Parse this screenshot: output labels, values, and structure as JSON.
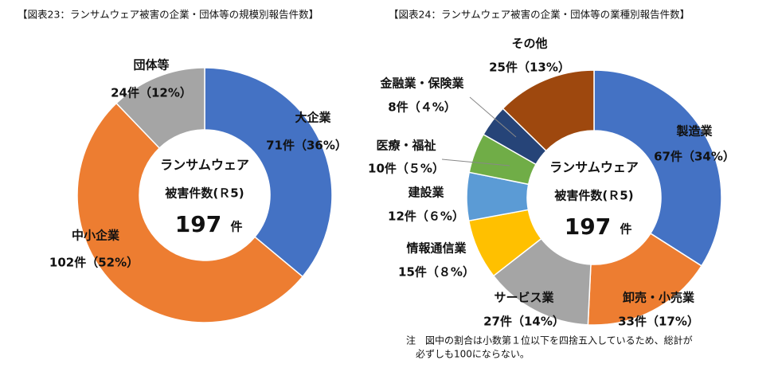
{
  "chart_data": [
    {
      "type": "donut",
      "title": "【図表23：ランサムウェア被害の企業・団体等の規模別報告件数】",
      "center_lines": [
        "ランサムウェア",
        "被害件数(Ｒ5)"
      ],
      "total": 197,
      "total_unit": "件",
      "categories": [
        "大企業",
        "中小企業",
        "団体等"
      ],
      "values": [
        71,
        102,
        24
      ],
      "value_labels": [
        "71件（36%）",
        "102件（52%）",
        "24件（12%）"
      ],
      "colors": [
        "#4472c4",
        "#ed7d31",
        "#a5a5a5"
      ]
    },
    {
      "type": "donut",
      "title": "【図表24：ランサムウェア被害の企業・団体等の業種別報告件数】",
      "center_lines": [
        "ランサムウェア",
        "被害件数(Ｒ5)"
      ],
      "total": 197,
      "total_unit": "件",
      "categories": [
        "製造業",
        "卸売・小売業",
        "サービス業",
        "情報通信業",
        "建設業",
        "医療・福祉",
        "金融業・保険業",
        "その他"
      ],
      "values": [
        67,
        33,
        27,
        15,
        12,
        10,
        8,
        25
      ],
      "value_labels": [
        "67件（34%）",
        "33件（17%）",
        "27件（14%）",
        "15件（８%）",
        "12件（６%）",
        "10件（５%）",
        "8件（４%）",
        "25件（13%）"
      ],
      "colors": [
        "#4472c4",
        "#ed7d31",
        "#a5a5a5",
        "#ffc000",
        "#5b9bd5",
        "#70ad47",
        "#264478",
        "#9e480e"
      ]
    }
  ],
  "note": [
    "注　図中の割合は小数第１位以下を四捨五入しているため、総計が",
    "必ずしも100にならない。"
  ]
}
